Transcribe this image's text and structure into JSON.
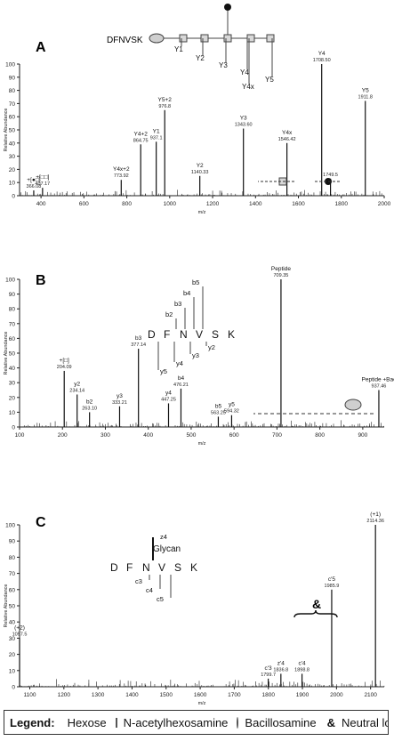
{
  "legend": {
    "title": "Legend:",
    "hexose": "Hexose",
    "hexnac": "N-acetylhexosamine",
    "bac": "Bacillosamine",
    "neutral": "Neutral loss ions",
    "amp": "&"
  },
  "chart_data": [
    {
      "panel": "A",
      "type": "bar",
      "xlabel": "m/z",
      "ylabel": "Relative Abundance",
      "xlim": [
        300,
        2000
      ],
      "ylim": [
        0,
        100
      ],
      "xticks": [
        400,
        600,
        800,
        1000,
        1200,
        1400,
        1600,
        1800,
        2000
      ],
      "yticks": [
        0,
        10,
        20,
        30,
        40,
        50,
        60,
        70,
        80,
        90,
        100
      ],
      "peptide_label": "DFNVSK",
      "fragment_labels": [
        "Y1",
        "Y2",
        "Y3",
        "Y4",
        "Y4x",
        "Y5"
      ],
      "peaks": [
        {
          "x": 366.08,
          "y": 4,
          "label": "+[●□] 366.08"
        },
        {
          "x": 407.17,
          "y": 6,
          "label": "+[□□] 407.17"
        },
        {
          "x": 773.92,
          "y": 12,
          "label": "Y4x+2 773.92"
        },
        {
          "x": 864.75,
          "y": 39,
          "label": "Y4+2 864.75"
        },
        {
          "x": 937.1,
          "y": 41,
          "label": "Y1 937.1"
        },
        {
          "x": 976.8,
          "y": 65,
          "label": "Y5+2 976.8"
        },
        {
          "x": 1140.33,
          "y": 15,
          "label": "Y2 1140.33"
        },
        {
          "x": 1343.6,
          "y": 51,
          "label": "Y3 1343.60"
        },
        {
          "x": 1546.42,
          "y": 40,
          "label": "Y4x 1546.42"
        },
        {
          "x": 1749.5,
          "y": 13,
          "label": "1749.5"
        },
        {
          "x": 1708.5,
          "y": 100,
          "label": "Y4 1708.50"
        },
        {
          "x": 1911.8,
          "y": 72,
          "label": "Y5 1911.8"
        }
      ]
    },
    {
      "panel": "B",
      "type": "bar",
      "xlabel": "m/z",
      "ylabel": "Relative Abundance",
      "xlim": [
        100,
        950
      ],
      "ylim": [
        0,
        100
      ],
      "xticks": [
        100,
        200,
        300,
        400,
        500,
        600,
        700,
        800,
        900
      ],
      "yticks": [
        0,
        10,
        20,
        30,
        40,
        50,
        60,
        70,
        80,
        90,
        100
      ],
      "peptide_letters": [
        "D",
        "F",
        "N",
        "V",
        "S",
        "K"
      ],
      "b_labels": [
        "b2",
        "b3",
        "b4",
        "b5"
      ],
      "y_labels": [
        "y2",
        "y3",
        "y4",
        "y5"
      ],
      "peaks": [
        {
          "x": 204.09,
          "y": 38,
          "label": "+[□] 204.09"
        },
        {
          "x": 234.14,
          "y": 22,
          "label": "y2 234.14"
        },
        {
          "x": 263.1,
          "y": 10,
          "label": "b2 263.10"
        },
        {
          "x": 333.21,
          "y": 14,
          "label": "y3 333.21"
        },
        {
          "x": 377.14,
          "y": 53,
          "label": "b3 377.14"
        },
        {
          "x": 447.25,
          "y": 16,
          "label": "y4 447.25"
        },
        {
          "x": 476.21,
          "y": 26,
          "label": "b4 476.21"
        },
        {
          "x": 563.25,
          "y": 7,
          "label": "b5 563.25"
        },
        {
          "x": 594.32,
          "y": 8,
          "label": "y5 594.32"
        },
        {
          "x": 709.35,
          "y": 100,
          "label": "Peptide 709.35"
        },
        {
          "x": 937.46,
          "y": 25,
          "label": "Peptide +Bac 937.46"
        }
      ]
    },
    {
      "panel": "C",
      "type": "bar",
      "xlabel": "m/z",
      "ylabel": "Relative Abundance",
      "xlim": [
        1070,
        2140
      ],
      "ylim": [
        0,
        100
      ],
      "xticks": [
        1100,
        1200,
        1300,
        1400,
        1500,
        1600,
        1700,
        1800,
        1900,
        2000,
        2100
      ],
      "yticks": [
        0,
        10,
        20,
        30,
        40,
        50,
        60,
        70,
        80,
        90,
        100
      ],
      "peptide_letters": [
        "D",
        "F",
        "N",
        "V",
        "S",
        "K"
      ],
      "glycan_label": "Glycan",
      "c_labels": [
        "c3",
        "c4",
        "c5"
      ],
      "z_label": "z4",
      "peaks": [
        {
          "x": 1057.5,
          "y": 30,
          "label": "(+2) 1057.5"
        },
        {
          "x": 1799.7,
          "y": 5,
          "label": "c'3 1799.7"
        },
        {
          "x": 1836.8,
          "y": 8,
          "label": "z'4 1836.8"
        },
        {
          "x": 1898.8,
          "y": 8,
          "label": "c'4 1898.8"
        },
        {
          "x": 1985.9,
          "y": 60,
          "label": "c'5 1985.9"
        },
        {
          "x": 2114.36,
          "y": 100,
          "label": "(+1) 2114.36"
        }
      ]
    }
  ]
}
